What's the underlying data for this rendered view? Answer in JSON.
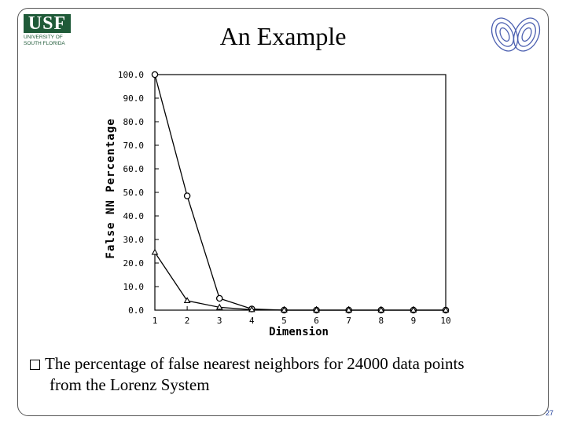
{
  "header": {
    "logo_text": "USF",
    "logo_line1": "UNIVERSITY OF",
    "logo_line2": "SOUTH FLORIDA",
    "title": "An Example"
  },
  "caption": {
    "line1": "The percentage of false nearest neighbors for 24000 data points",
    "line2": "from the Lorenz System"
  },
  "page_number": "27",
  "colors": {
    "logo_green": "#1f5a38",
    "attractor_blue": "#4b5fb0",
    "page_number_blue": "#1f3f9a"
  },
  "icons": {
    "bullet": "checkbox-bullet-icon",
    "attractor": "lorenz-attractor-icon"
  },
  "chart_data": {
    "type": "line",
    "xlabel": "Dimension",
    "ylabel": "False NN Percentage",
    "x": [
      1,
      2,
      3,
      4,
      5,
      6,
      7,
      8,
      9,
      10
    ],
    "xlim": [
      1,
      10
    ],
    "ylim": [
      0,
      100
    ],
    "xticks": [
      "1",
      "2",
      "3",
      "4",
      "5",
      "6",
      "7",
      "8",
      "9",
      "10"
    ],
    "yticks": [
      "0.0",
      "10.0",
      "20.0",
      "30.0",
      "40.0",
      "50.0",
      "60.0",
      "70.0",
      "80.0",
      "90.0",
      "100.0"
    ],
    "grid": false,
    "series": [
      {
        "marker": "circle",
        "values": [
          100,
          48.5,
          5,
          0.5,
          0,
          0,
          0,
          0,
          0,
          0
        ]
      },
      {
        "marker": "triangle",
        "values": [
          24.5,
          4,
          1.2,
          0.2,
          0,
          0,
          0,
          0,
          0,
          0
        ]
      }
    ]
  }
}
